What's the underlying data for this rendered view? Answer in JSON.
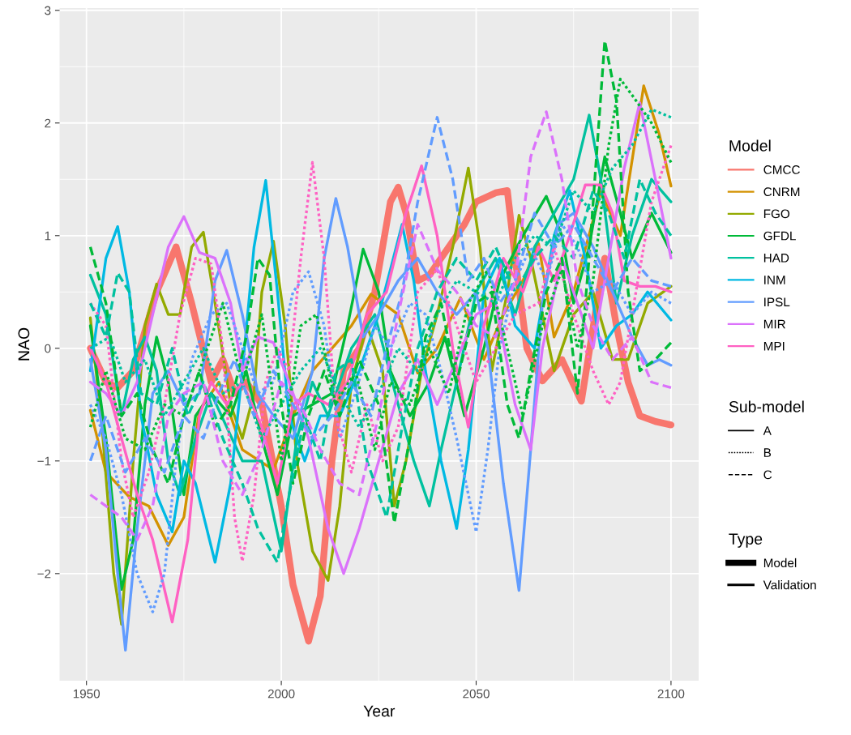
{
  "chart_data": {
    "type": "line",
    "xlabel": "Year",
    "ylabel": "NAO",
    "legend_title": "Model",
    "legend": "right",
    "grid": true,
    "xlim": [
      1943.1,
      2107.1
    ],
    "xticks": [
      1950,
      2000,
      2050,
      2100
    ],
    "ylim": [
      -2.95,
      3.02
    ],
    "yticks": [
      {
        "value": -2,
        "label": "−2"
      },
      {
        "value": -1,
        "label": "−1"
      },
      0,
      1,
      2,
      3
    ],
    "annotations": [
      "Sub-model",
      "A",
      "B",
      "C",
      "Type",
      "Model",
      "Validation"
    ],
    "series": [
      {
        "name": "CMCC",
        "color": "#F8766D",
        "line_style": "solid",
        "x": [
          1951,
          1955,
          1958,
          1962,
          1968,
          1973,
          1977,
          1982,
          1985,
          1988,
          1991,
          1995,
          2000,
          2003,
          2007,
          2010,
          2013,
          2016,
          2020,
          2024,
          2028,
          2030,
          2032,
          2035,
          2038,
          2042,
          2047,
          2050,
          2055,
          2058,
          2060,
          2063,
          2067,
          2072,
          2077,
          2081,
          2083,
          2086,
          2089,
          2092,
          2096,
          2100
        ],
        "values": [
          0.0,
          -0.3,
          -0.35,
          -0.2,
          0.5,
          0.9,
          0.4,
          -0.3,
          -0.1,
          -0.4,
          -0.3,
          -0.5,
          -1.4,
          -2.1,
          -2.6,
          -2.2,
          -1.0,
          -0.2,
          0.0,
          0.5,
          1.3,
          1.43,
          1.2,
          0.6,
          0.65,
          0.85,
          1.1,
          1.3,
          1.38,
          1.4,
          0.8,
          0.0,
          -0.29,
          -0.1,
          -0.47,
          0.4,
          0.8,
          0.2,
          -0.3,
          -0.6,
          -0.65,
          -0.68
        ]
      },
      {
        "name": "CNRM",
        "color": "#D39200",
        "line_style": "solid",
        "x": [
          1951,
          1955,
          1961,
          1966,
          1971,
          1975,
          1979,
          1984,
          1990,
          1998,
          2003,
          2008,
          2013,
          2018,
          2023,
          2030,
          2035,
          2040,
          2046,
          2052,
          2057,
          2062,
          2066,
          2070,
          2075,
          2082,
          2087,
          2093,
          2097,
          2100
        ],
        "values": [
          -0.55,
          -1.1,
          -1.32,
          -1.4,
          -1.75,
          -1.5,
          -0.55,
          -0.3,
          -0.9,
          -1.08,
          -0.6,
          -0.2,
          0.0,
          0.2,
          0.48,
          0.3,
          -0.22,
          0.0,
          0.45,
          -0.1,
          0.3,
          0.6,
          0.93,
          0.1,
          0.5,
          1.39,
          1.0,
          2.33,
          1.9,
          1.44
        ]
      },
      {
        "name": "FGO",
        "color": "#93AA00",
        "line_style": "solid",
        "x": [
          1951,
          1954,
          1957,
          1959,
          1962,
          1965,
          1968,
          1971,
          1974,
          1977,
          1980,
          1983,
          1987,
          1990,
          1993,
          1995,
          1998,
          2001,
          2004,
          2008,
          2012,
          2015,
          2018,
          2022,
          2026,
          2029,
          2032,
          2036,
          2040,
          2044,
          2048,
          2051,
          2054,
          2058,
          2061,
          2064,
          2067,
          2070,
          2075,
          2080,
          2085,
          2089,
          2094,
          2100
        ],
        "values": [
          0.27,
          -0.7,
          -2.0,
          -2.45,
          -1.0,
          0.2,
          0.57,
          0.3,
          0.3,
          0.9,
          1.03,
          0.4,
          -0.5,
          -0.8,
          -0.4,
          0.5,
          0.95,
          0.2,
          -1.0,
          -1.8,
          -2.06,
          -1.4,
          -0.3,
          0.2,
          -0.2,
          -1.4,
          -1.0,
          -0.2,
          0.3,
          0.9,
          1.6,
          0.9,
          -0.2,
          0.5,
          1.18,
          0.8,
          0.3,
          -0.2,
          0.3,
          0.5,
          -0.1,
          -0.1,
          0.4,
          0.55
        ]
      },
      {
        "name": "GFDL",
        "color": "#00BA38",
        "line_style": "solid",
        "x": [
          1951,
          1955,
          1959,
          1962,
          1965,
          1968,
          1971,
          1975,
          1978,
          1982,
          1987,
          1991,
          1995,
          1999,
          2003,
          2008,
          2013,
          2017,
          2021,
          2025,
          2028,
          2033,
          2038,
          2042,
          2047,
          2052,
          2056,
          2062,
          2068,
          2072,
          2075,
          2079,
          2083,
          2087,
          2090,
          2095,
          2100
        ],
        "values": [
          0.2,
          -0.8,
          -2.14,
          -1.7,
          -0.5,
          0.1,
          -0.3,
          -1.3,
          -0.6,
          -0.4,
          -0.6,
          -0.2,
          -0.8,
          -1.3,
          -0.6,
          -0.5,
          -0.4,
          0.2,
          0.88,
          0.5,
          -0.2,
          -0.6,
          -0.3,
          0.1,
          -0.6,
          0.0,
          0.6,
          1.0,
          1.35,
          1.0,
          0.4,
          0.9,
          1.7,
          1.2,
          0.8,
          1.2,
          0.85
        ]
      },
      {
        "name": "HAD",
        "color": "#00C19F",
        "line_style": "solid",
        "x": [
          1951,
          1955,
          1959,
          1962,
          1965,
          1968,
          1971,
          1974,
          1978,
          1982,
          1986,
          1990,
          1995,
          2000,
          2004,
          2008,
          2012,
          2018,
          2024,
          2030,
          2034,
          2038,
          2041,
          2045,
          2050,
          2055,
          2060,
          2065,
          2070,
          2075,
          2079,
          2082,
          2086,
          2090,
          2095,
          2100
        ],
        "values": [
          0.65,
          0.3,
          -0.6,
          -0.1,
          0.1,
          -0.2,
          -1.0,
          -1.3,
          -0.8,
          -0.4,
          -0.7,
          -1.0,
          -1.0,
          -1.8,
          -0.8,
          -0.3,
          -0.6,
          0.0,
          0.3,
          -0.5,
          -1.0,
          -1.4,
          -0.9,
          -0.3,
          0.5,
          0.8,
          0.3,
          0.9,
          1.2,
          1.5,
          2.07,
          1.5,
          0.4,
          1.0,
          1.5,
          1.3
        ]
      },
      {
        "name": "INM",
        "color": "#00B9E3",
        "line_style": "solid",
        "x": [
          1951,
          1955,
          1958,
          1961,
          1964,
          1968,
          1972,
          1975,
          1978,
          1983,
          1987,
          1990,
          1993,
          1996,
          1999,
          2002,
          2006,
          2010,
          2015,
          2020,
          2025,
          2031,
          2034,
          2037,
          2041,
          2045,
          2048,
          2052,
          2056,
          2060,
          2065,
          2070,
          2074,
          2078,
          2082,
          2086,
          2090,
          2094,
          2100
        ],
        "values": [
          -0.2,
          0.8,
          1.08,
          0.5,
          -0.6,
          -1.3,
          -1.63,
          -1.0,
          -1.2,
          -1.9,
          -1.2,
          -0.2,
          0.9,
          1.49,
          0.5,
          -0.6,
          -1.0,
          -0.6,
          -0.6,
          -0.2,
          0.3,
          1.1,
          0.6,
          -0.2,
          -1.0,
          -1.6,
          -0.9,
          0.5,
          0.8,
          0.2,
          0.0,
          1.0,
          1.4,
          0.8,
          0.0,
          0.2,
          0.3,
          0.5,
          0.25
        ]
      },
      {
        "name": "IPSL",
        "color": "#619CFF",
        "line_style": "solid",
        "x": [
          1951,
          1955,
          1958,
          1960,
          1963,
          1967,
          1971,
          1975,
          1979,
          1983,
          1986,
          1990,
          1994,
          1998,
          2003,
          2008,
          2011,
          2014,
          2017,
          2021,
          2025,
          2030,
          2035,
          2040,
          2045,
          2050,
          2053,
          2057,
          2061,
          2064,
          2067,
          2071,
          2075,
          2080,
          2085,
          2090,
          2094,
          2097,
          2100
        ],
        "values": [
          -0.1,
          -0.9,
          -2.0,
          -2.68,
          -1.6,
          -0.4,
          -0.2,
          -0.5,
          -0.4,
          0.6,
          0.87,
          0.3,
          -0.4,
          -0.6,
          -0.8,
          -0.2,
          0.8,
          1.33,
          0.9,
          0.1,
          0.3,
          0.6,
          0.8,
          0.5,
          0.3,
          0.5,
          0.0,
          -1.2,
          -2.15,
          -0.9,
          0.4,
          1.1,
          1.2,
          0.9,
          0.5,
          0.1,
          -0.15,
          -0.1,
          -0.15
        ]
      },
      {
        "name": "MIR",
        "color": "#DB72FB",
        "line_style": "solid",
        "x": [
          1951,
          1955,
          1959,
          1963,
          1967,
          1971,
          1975,
          1979,
          1983,
          1987,
          1990,
          1994,
          1998,
          2002,
          2007,
          2012,
          2016,
          2020,
          2025,
          2030,
          2035,
          2040,
          2045,
          2050,
          2055,
          2060,
          2064,
          2067,
          2072,
          2076,
          2080,
          2084,
          2088,
          2092,
          2096,
          2100
        ],
        "values": [
          -0.3,
          -0.4,
          -0.6,
          -0.3,
          0.3,
          0.9,
          1.17,
          0.85,
          0.8,
          0.4,
          -0.2,
          0.1,
          0.05,
          -0.3,
          -0.8,
          -1.6,
          -2.0,
          -1.6,
          -1.0,
          -0.4,
          -0.1,
          -0.5,
          -0.1,
          0.3,
          0.4,
          -0.5,
          -0.9,
          0.0,
          0.8,
          0.4,
          0.0,
          0.8,
          1.6,
          2.18,
          1.5,
          0.8
        ]
      },
      {
        "name": "MPI",
        "color": "#FF61C3",
        "line_style": "solid",
        "x": [
          1951,
          1955,
          1959,
          1963,
          1967,
          1972,
          1976,
          1979,
          1982,
          1986,
          1990,
          1995,
          1999,
          2003,
          2007,
          2012,
          2017,
          2022,
          2027,
          2032,
          2036,
          2040,
          2044,
          2048,
          2052,
          2057,
          2062,
          2066,
          2070,
          2074,
          2078,
          2082,
          2085,
          2088,
          2092,
          2096,
          2100
        ],
        "values": [
          0.0,
          -0.3,
          -0.8,
          -1.3,
          -1.7,
          -2.43,
          -1.7,
          -0.6,
          -0.3,
          -0.5,
          -0.3,
          -0.7,
          -1.2,
          -0.5,
          -0.4,
          -0.5,
          -0.3,
          0.3,
          0.5,
          1.2,
          1.62,
          1.0,
          0.0,
          -0.7,
          0.2,
          0.8,
          0.5,
          0.9,
          0.6,
          1.0,
          1.45,
          1.45,
          1.2,
          0.6,
          0.55,
          0.55,
          0.5
        ]
      },
      {
        "color": "#619CFF",
        "line_style": "dotted",
        "x": [
          1951,
          1955,
          1959,
          1963,
          1967,
          1970,
          1973,
          1977,
          1982,
          1986,
          1990,
          1994,
          1998,
          2003,
          2007,
          2011,
          2015,
          2019,
          2024,
          2028,
          2033,
          2037,
          2041,
          2045,
          2050,
          2053,
          2056,
          2060,
          2064,
          2068,
          2072,
          2076,
          2080,
          2085,
          2090,
          2095,
          2100
        ],
        "values": [
          -0.5,
          -0.8,
          -1.3,
          -2.0,
          -2.34,
          -2.0,
          -1.0,
          -0.1,
          0.3,
          0.4,
          0.0,
          -0.4,
          -0.3,
          0.5,
          0.68,
          0.2,
          -0.8,
          -0.4,
          0.2,
          0.0,
          0.4,
          0.3,
          -0.2,
          -0.8,
          -1.63,
          -0.9,
          0.0,
          0.6,
          0.9,
          0.6,
          1.1,
          0.9,
          0.5,
          0.6,
          0.3,
          0.5,
          0.4
        ]
      },
      {
        "color": "#FF61C3",
        "line_style": "dotted",
        "x": [
          1951,
          1955,
          1959,
          1962,
          1966,
          1970,
          1974,
          1978,
          1982,
          1985,
          1988,
          1990,
          1993,
          1996,
          1999,
          2002,
          2005,
          2008,
          2011,
          2014,
          2018,
          2022,
          2026,
          2030,
          2035,
          2040,
          2045,
          2050,
          2055,
          2060,
          2066,
          2070,
          2075,
          2080,
          2084,
          2087,
          2090,
          2095,
          2100
        ],
        "values": [
          0.4,
          0.2,
          -1.0,
          -1.5,
          -1.1,
          -0.5,
          0.3,
          0.8,
          0.75,
          0.0,
          -1.5,
          -1.89,
          -1.3,
          -0.3,
          0.0,
          -0.2,
          0.8,
          1.65,
          0.8,
          -0.6,
          -1.1,
          -0.5,
          -1.0,
          -0.7,
          0.5,
          0.7,
          0.2,
          -0.3,
          0.0,
          0.3,
          0.4,
          0.9,
          0.3,
          -0.2,
          -0.5,
          -0.3,
          0.3,
          1.3,
          1.8
        ]
      },
      {
        "color": "#00BA38",
        "line_style": "dotted",
        "x": [
          1951,
          1955,
          1960,
          1965,
          1970,
          1975,
          1980,
          1985,
          1990,
          1995,
          2000,
          2005,
          2009,
          2014,
          2019,
          2024,
          2028,
          2033,
          2038,
          2043,
          2048,
          2053,
          2058,
          2062,
          2067,
          2072,
          2076,
          2080,
          2084,
          2087,
          2091,
          2095,
          2100
        ],
        "values": [
          -0.7,
          -0.2,
          -0.8,
          -0.9,
          -0.5,
          -0.6,
          -0.1,
          0.4,
          -0.3,
          0.3,
          -1.0,
          0.2,
          0.3,
          -0.5,
          -0.2,
          -0.9,
          -0.3,
          -0.5,
          0.0,
          -0.4,
          0.4,
          0.7,
          0.0,
          -0.6,
          0.2,
          0.7,
          0.0,
          0.6,
          1.8,
          2.39,
          2.2,
          2.0,
          1.65
        ]
      },
      {
        "color": "#00C19F",
        "line_style": "dotted",
        "x": [
          1951,
          1956,
          1960,
          1965,
          1970,
          1975,
          1980,
          1985,
          1990,
          1995,
          2000,
          2005,
          2010,
          2015,
          2020,
          2025,
          2030,
          2035,
          2040,
          2045,
          2050,
          2055,
          2060,
          2065,
          2070,
          2075,
          2080,
          2085,
          2090,
          2095,
          2100
        ],
        "values": [
          0.0,
          0.1,
          -0.3,
          -0.1,
          -0.6,
          -0.3,
          0.0,
          -0.4,
          -0.3,
          -0.8,
          -0.5,
          -0.2,
          0.0,
          -0.4,
          -0.7,
          -0.4,
          0.0,
          -0.2,
          0.3,
          0.6,
          0.5,
          0.4,
          0.8,
          1.0,
          0.9,
          1.4,
          1.2,
          1.6,
          1.8,
          2.12,
          2.05
        ]
      },
      {
        "color": "#00BA38",
        "line_style": "dashed",
        "x": [
          1951,
          1955,
          1959,
          1963,
          1967,
          1971,
          1975,
          1979,
          1983,
          1987,
          1991,
          1994,
          1997,
          2000,
          2003,
          2007,
          2011,
          2015,
          2020,
          2025,
          2029,
          2033,
          2037,
          2041,
          2045,
          2050,
          2054,
          2058,
          2061,
          2064,
          2068,
          2072,
          2076,
          2079,
          2083,
          2086,
          2089,
          2092,
          2096,
          2100
        ],
        "values": [
          0.9,
          0.4,
          -0.6,
          -0.4,
          -0.9,
          -1.2,
          -0.6,
          -0.2,
          -0.7,
          -0.5,
          0.1,
          0.8,
          0.65,
          -0.5,
          -1.2,
          -0.6,
          -0.2,
          -0.6,
          -0.1,
          -0.5,
          -1.55,
          -0.8,
          0.1,
          0.4,
          -0.3,
          0.4,
          0.5,
          -0.5,
          -0.8,
          -0.2,
          0.5,
          0.8,
          -0.4,
          0.8,
          2.73,
          2.2,
          0.5,
          -0.2,
          -0.1,
          0.05
        ]
      },
      {
        "color": "#00C19F",
        "line_style": "dashed",
        "x": [
          1951,
          1955,
          1958,
          1961,
          1964,
          1968,
          1972,
          1976,
          1980,
          1985,
          1990,
          1994,
          1999,
          2002,
          2006,
          2010,
          2014,
          2018,
          2022,
          2027,
          2031,
          2035,
          2040,
          2045,
          2050,
          2055,
          2060,
          2065,
          2070,
          2075,
          2080,
          2084,
          2088,
          2092,
          2096,
          2100
        ],
        "values": [
          0.4,
          0.1,
          0.67,
          0.5,
          -0.4,
          -0.5,
          0.0,
          -0.6,
          -0.3,
          -0.8,
          -1.2,
          -1.6,
          -1.9,
          -1.3,
          -0.6,
          -1.0,
          -0.2,
          -0.1,
          -1.0,
          -1.5,
          -0.7,
          0.0,
          0.5,
          0.8,
          0.6,
          0.9,
          0.5,
          0.8,
          1.0,
          0.8,
          1.4,
          1.2,
          0.8,
          1.5,
          1.2,
          1.0
        ]
      },
      {
        "color": "#619CFF",
        "line_style": "dashed",
        "x": [
          1951,
          1955,
          1960,
          1965,
          1970,
          1975,
          1980,
          1984,
          1988,
          1993,
          1998,
          2003,
          2008,
          2013,
          2018,
          2023,
          2027,
          2031,
          2035,
          2040,
          2044,
          2048,
          2052,
          2056,
          2060,
          2065,
          2070,
          2075,
          2080,
          2085,
          2090,
          2095,
          2100
        ],
        "values": [
          -1.0,
          -0.6,
          -1.1,
          -0.8,
          -1.1,
          -0.6,
          -0.8,
          -0.4,
          -0.1,
          -0.6,
          -0.2,
          -0.5,
          -0.8,
          -0.6,
          -0.3,
          -0.6,
          0.0,
          0.5,
          1.3,
          2.05,
          1.5,
          0.6,
          0.8,
          0.4,
          0.6,
          1.2,
          0.9,
          1.1,
          0.8,
          0.5,
          0.8,
          0.6,
          0.55
        ]
      },
      {
        "color": "#DB72FB",
        "line_style": "dashed",
        "x": [
          1951,
          1955,
          1959,
          1963,
          1967,
          1971,
          1975,
          1980,
          1985,
          1990,
          1995,
          2000,
          2005,
          2010,
          2015,
          2020,
          2025,
          2030,
          2035,
          2040,
          2045,
          2050,
          2055,
          2060,
          2064,
          2068,
          2072,
          2076,
          2080,
          2085,
          2090,
          2095,
          2100
        ],
        "values": [
          -1.3,
          -1.4,
          -1.5,
          -1.7,
          -1.4,
          -0.6,
          -0.4,
          -0.3,
          -1.0,
          -1.3,
          -0.9,
          -0.3,
          -0.5,
          -0.9,
          -1.2,
          -1.3,
          -0.6,
          0.3,
          1.1,
          0.7,
          0.5,
          0.2,
          0.1,
          0.6,
          1.7,
          2.1,
          1.5,
          0.6,
          0.2,
          -0.1,
          0.1,
          -0.3,
          -0.35
        ]
      }
    ]
  }
}
